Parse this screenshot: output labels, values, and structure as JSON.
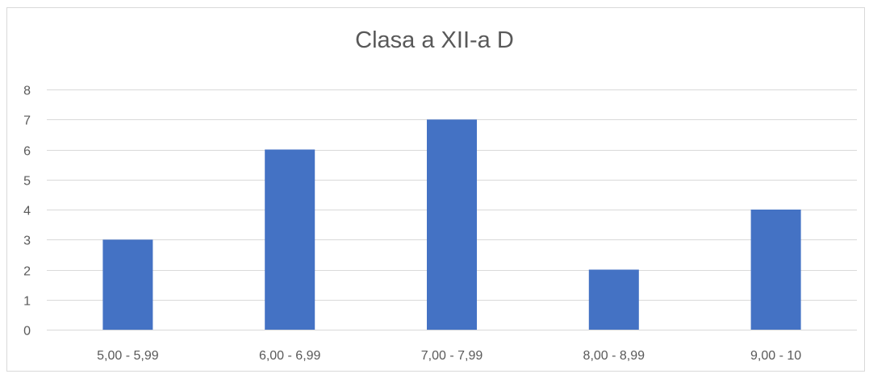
{
  "chart_data": {
    "type": "bar",
    "title": "Clasa a XII-a D",
    "categories": [
      "5,00 - 5,99",
      "6,00 - 6,99",
      "7,00 - 7,99",
      "8,00 - 8,99",
      "9,00 - 10"
    ],
    "series": [
      {
        "values": [
          3,
          6,
          7,
          2,
          4
        ]
      }
    ],
    "xlabel": "",
    "ylabel": "",
    "ylim": [
      0,
      8
    ],
    "yticks": [
      "0",
      "1",
      "2",
      "3",
      "4",
      "5",
      "6",
      "7",
      "8"
    ],
    "grid": true,
    "legend": "none",
    "bar_color": "#4472C4",
    "grid_color": "#d9d9d9",
    "text_color": "#595959"
  }
}
